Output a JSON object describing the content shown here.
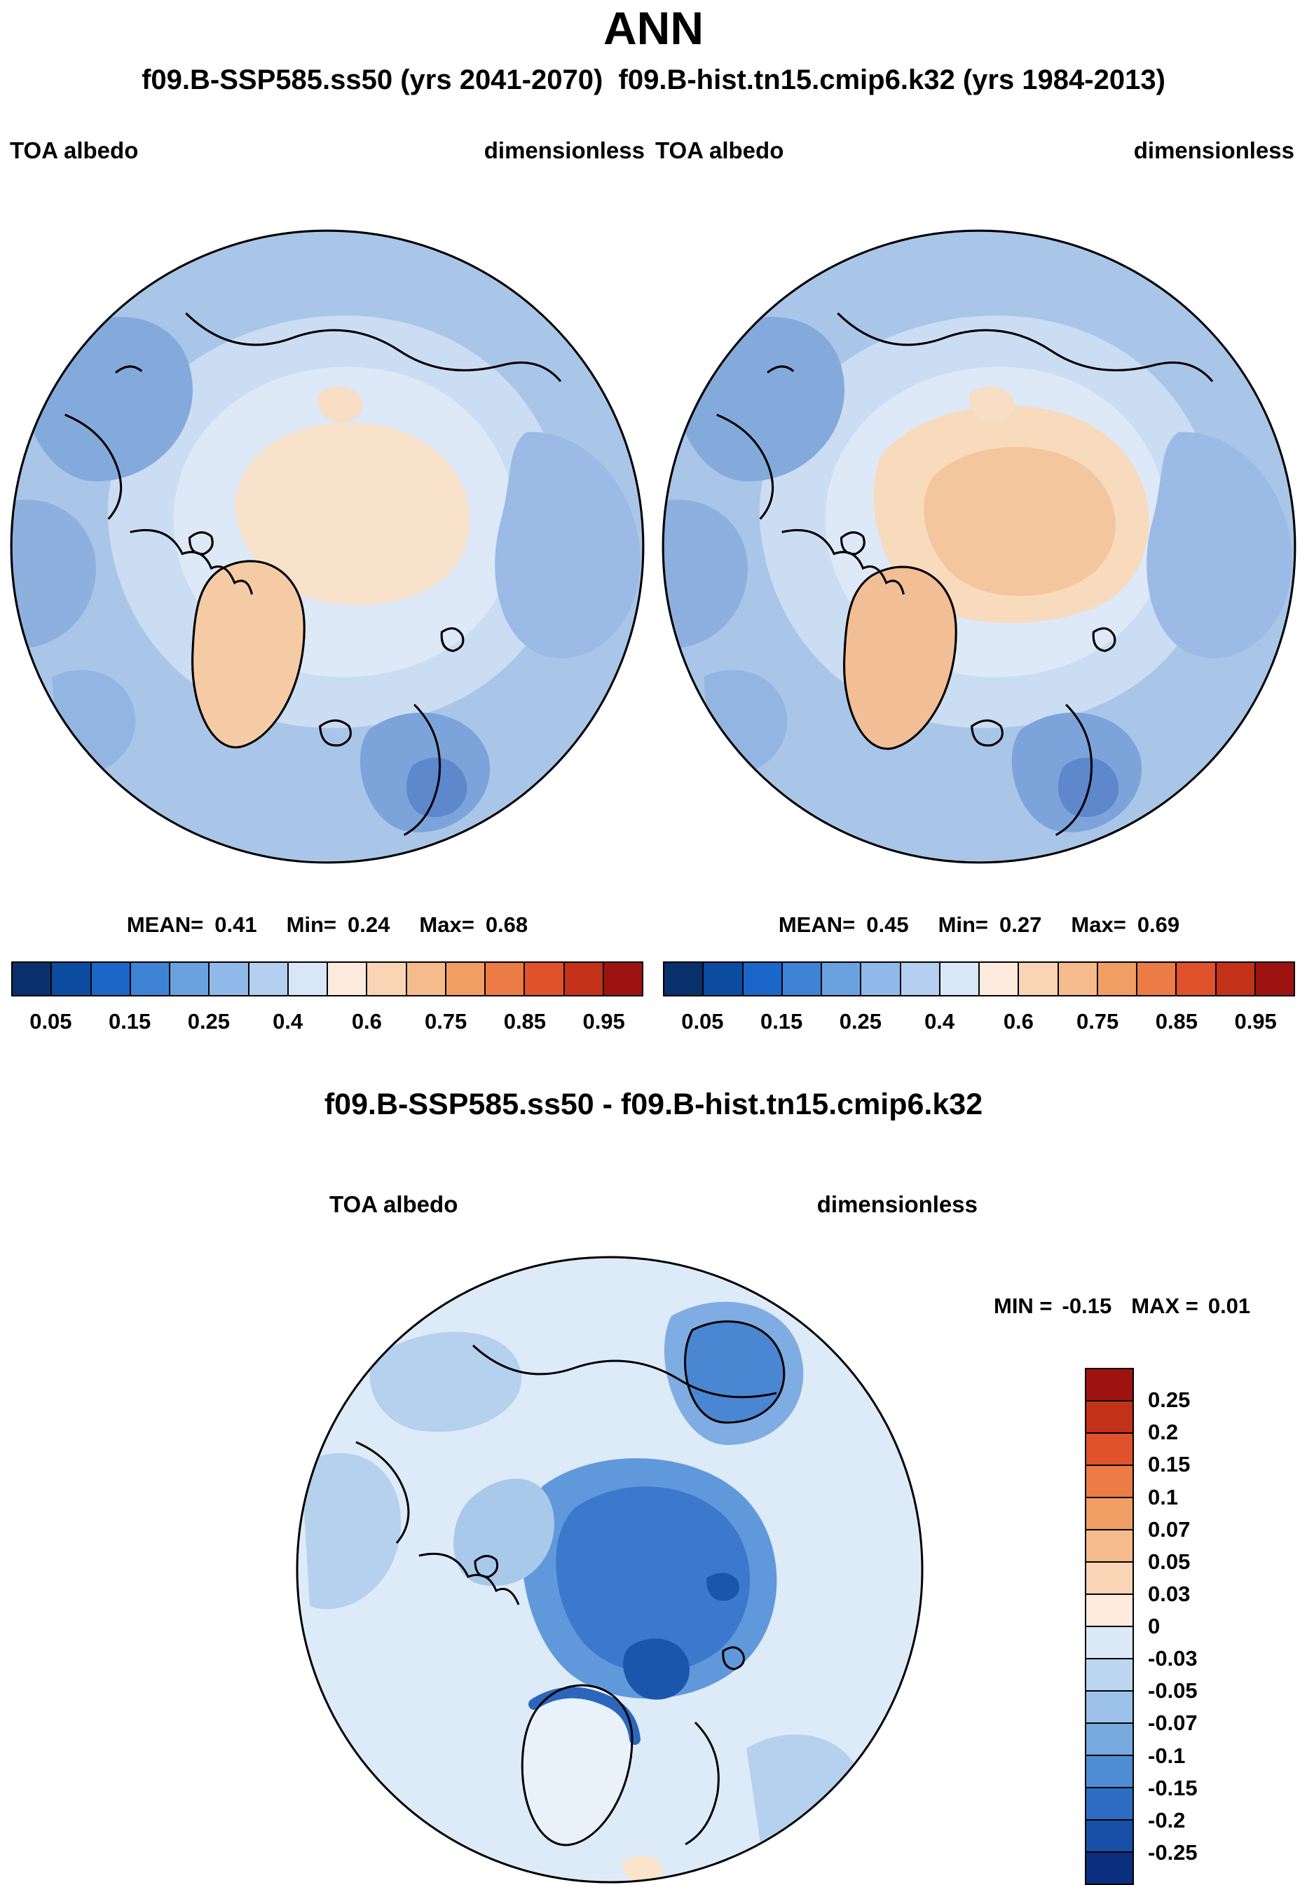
{
  "header": {
    "title": "ANN",
    "subtitle": "f09.B-SSP585.ss50 (yrs 2041-2070)  f09.B-hist.tn15.cmip6.k32 (yrs 1984-2013)"
  },
  "panels": [
    {
      "var_label": "TOA albedo",
      "units_label": "dimensionless",
      "stats": {
        "mean_label": "MEAN=",
        "mean": "0.41",
        "min_label": "Min=",
        "min": "0.24",
        "max_label": "Max=",
        "max": "0.68"
      }
    },
    {
      "var_label": "TOA albedo",
      "units_label": "dimensionless",
      "stats": {
        "mean_label": "MEAN=",
        "mean": "0.45",
        "min_label": "Min=",
        "min": "0.27",
        "max_label": "Max=",
        "max": "0.69"
      }
    }
  ],
  "colorbar_h": {
    "colors": [
      "#08306B",
      "#0B4BA0",
      "#1B66C9",
      "#3E83D6",
      "#69A2DF",
      "#8FB9E8",
      "#B4CFEF",
      "#D8E6F6",
      "#FCEBDC",
      "#F9D4B5",
      "#F6BB8D",
      "#F19E64",
      "#EC7B45",
      "#DF522C",
      "#C23118",
      "#9E1310"
    ],
    "ticks": {
      "labels": [
        "0.05",
        "0.15",
        "0.25",
        "0.4",
        "0.6",
        "0.75",
        "0.85",
        "0.95"
      ],
      "positions": [
        6.25,
        18.75,
        31.25,
        43.75,
        56.25,
        68.75,
        81.25,
        93.75
      ]
    }
  },
  "diff": {
    "title": "f09.B-SSP585.ss50 - f09.B-hist.tn15.cmip6.k32",
    "var_label": "TOA albedo",
    "units_label": "dimensionless",
    "stats": {
      "min_label": "MIN =",
      "min": "-0.15",
      "max_label": "MAX =",
      "max": "0.01"
    },
    "colorbar": {
      "colors": [
        "#9E1310",
        "#C23118",
        "#DF522C",
        "#EC7B45",
        "#F19E64",
        "#F6BB8D",
        "#F9D4B5",
        "#FCEBDC",
        "#DCE9F7",
        "#BED7F1",
        "#9CC2E9",
        "#76AADF",
        "#4E8DD4",
        "#2C6DC3",
        "#1750A6",
        "#0A2F7E"
      ],
      "ticks": {
        "labels": [
          "0.25",
          "0.2",
          "0.15",
          "0.1",
          "0.07",
          "0.05",
          "0.03",
          "0",
          "-0.03",
          "-0.05",
          "-0.07",
          "-0.1",
          "-0.15",
          "-0.2",
          "-0.25"
        ],
        "positions": [
          6.25,
          12.5,
          18.75,
          25,
          31.25,
          37.5,
          43.75,
          50,
          56.25,
          62.5,
          68.75,
          75,
          81.25,
          87.5,
          93.75
        ]
      }
    }
  },
  "chart_data": [
    {
      "type": "heatmap",
      "projection": "north_polar_stereographic",
      "season": "ANN",
      "title": "f09.B-SSP585.ss50 (yrs 2041-2070)",
      "variable": "TOA albedo",
      "units": "dimensionless",
      "stats": {
        "mean": 0.41,
        "min": 0.24,
        "max": 0.68
      },
      "contour_levels": [
        0.05,
        0.1,
        0.15,
        0.2,
        0.25,
        0.3,
        0.4,
        0.5,
        0.6,
        0.7,
        0.75,
        0.8,
        0.85,
        0.9,
        0.95
      ],
      "colorbar_tick_labels": [
        "0.05",
        "0.15",
        "0.25",
        "0.4",
        "0.6",
        "0.75",
        "0.85",
        "0.95"
      ],
      "palette": "blue-to-red, low albedo ocean blue, high albedo ice cap peach/red",
      "legend_position": "bottom"
    },
    {
      "type": "heatmap",
      "projection": "north_polar_stereographic",
      "season": "ANN",
      "title": "f09.B-hist.tn15.cmip6.k32 (yrs 1984-2013)",
      "variable": "TOA albedo",
      "units": "dimensionless",
      "stats": {
        "mean": 0.45,
        "min": 0.27,
        "max": 0.69
      },
      "contour_levels": [
        0.05,
        0.1,
        0.15,
        0.2,
        0.25,
        0.3,
        0.4,
        0.5,
        0.6,
        0.7,
        0.75,
        0.8,
        0.85,
        0.9,
        0.95
      ],
      "colorbar_tick_labels": [
        "0.05",
        "0.15",
        "0.25",
        "0.4",
        "0.6",
        "0.75",
        "0.85",
        "0.95"
      ],
      "palette": "blue-to-red, larger/deeper ice cap region than case 1",
      "legend_position": "bottom"
    },
    {
      "type": "heatmap",
      "projection": "north_polar_stereographic",
      "season": "ANN",
      "title": "f09.B-SSP585.ss50 - f09.B-hist.tn15.cmip6.k32",
      "variable": "TOA albedo",
      "units": "dimensionless",
      "stats": {
        "min": -0.15,
        "max": 0.01
      },
      "contour_levels": [
        -0.25,
        -0.2,
        -0.15,
        -0.1,
        -0.07,
        -0.05,
        -0.03,
        0,
        0.03,
        0.05,
        0.07,
        0.1,
        0.15,
        0.2,
        0.25
      ],
      "palette": "red positive to blue negative; strong negative (blue) anomaly over central Arctic Ocean",
      "legend_position": "right"
    }
  ]
}
